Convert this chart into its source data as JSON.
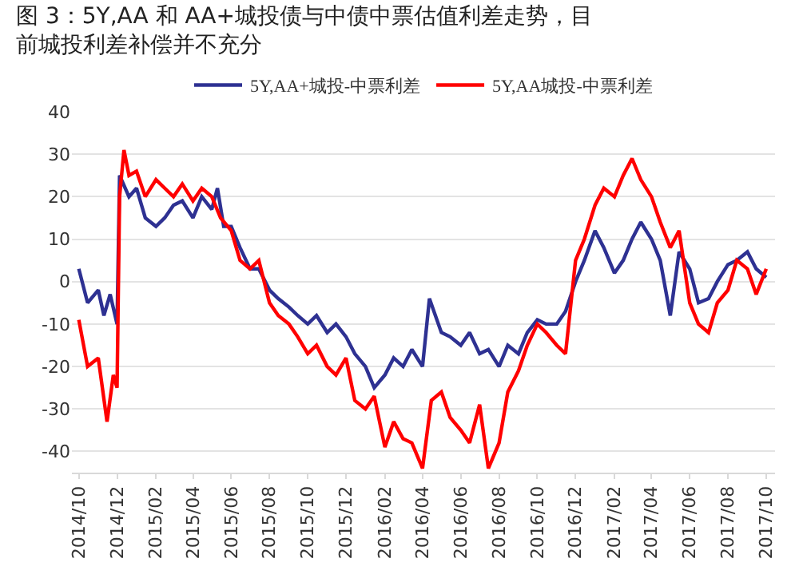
{
  "chart_data": {
    "type": "line",
    "title": "图 3：5Y,AA 和 AA+城投债与中债中票估值利差走势，目前城投利差补偿并不充分",
    "series": [
      {
        "name": "5Y,AA+城投-中票利差",
        "color": "#2e3192",
        "x": [
          "2014-10-01",
          "2014-10-15",
          "2014-11-01",
          "2014-11-10",
          "2014-11-20",
          "2014-12-01",
          "2014-12-05",
          "2014-12-20",
          "2015-01-01",
          "2015-01-15",
          "2015-02-01",
          "2015-02-15",
          "2015-03-01",
          "2015-03-15",
          "2015-04-01",
          "2015-04-15",
          "2015-05-01",
          "2015-05-10",
          "2015-05-20",
          "2015-06-01",
          "2015-06-15",
          "2015-07-01",
          "2015-07-15",
          "2015-08-01",
          "2015-08-15",
          "2015-09-01",
          "2015-09-15",
          "2015-10-01",
          "2015-10-15",
          "2015-11-01",
          "2015-11-15",
          "2015-12-01",
          "2015-12-15",
          "2016-01-01",
          "2016-01-15",
          "2016-02-01",
          "2016-02-15",
          "2016-03-01",
          "2016-03-15",
          "2016-04-01",
          "2016-04-12",
          "2016-05-01",
          "2016-05-15",
          "2016-06-01",
          "2016-06-15",
          "2016-07-01",
          "2016-07-15",
          "2016-08-01",
          "2016-08-15",
          "2016-09-01",
          "2016-09-15",
          "2016-10-01",
          "2016-10-15",
          "2016-11-01",
          "2016-11-15",
          "2016-12-01",
          "2016-12-15",
          "2017-01-01",
          "2017-01-15",
          "2017-02-01",
          "2017-02-15",
          "2017-03-01",
          "2017-03-15",
          "2017-04-01",
          "2017-04-15",
          "2017-05-01",
          "2017-05-15",
          "2017-06-01",
          "2017-06-15",
          "2017-07-01",
          "2017-07-15",
          "2017-08-01",
          "2017-08-15",
          "2017-09-01",
          "2017-09-15",
          "2017-10-01"
        ],
        "values": [
          3,
          -5,
          -2,
          -8,
          -3,
          -10,
          25,
          20,
          22,
          15,
          13,
          15,
          18,
          19,
          15,
          20,
          17,
          22,
          13,
          13,
          8,
          3,
          3,
          -2,
          -4,
          -6,
          -8,
          -10,
          -8,
          -12,
          -10,
          -13,
          -17,
          -20,
          -25,
          -22,
          -18,
          -20,
          -16,
          -20,
          -4,
          -12,
          -13,
          -15,
          -12,
          -17,
          -16,
          -20,
          -15,
          -17,
          -12,
          -9,
          -10,
          -10,
          -7,
          0,
          5,
          12,
          8,
          2,
          5,
          10,
          14,
          10,
          5,
          -8,
          7,
          3,
          -5,
          -4,
          0,
          4,
          5,
          7,
          3,
          1
        ]
      },
      {
        "name": "5Y,AA城投-中票利差",
        "color": "#ff0000",
        "x": [
          "2014-10-01",
          "2014-10-15",
          "2014-11-01",
          "2014-11-15",
          "2014-11-25",
          "2014-12-01",
          "2014-12-05",
          "2014-12-12",
          "2014-12-20",
          "2015-01-01",
          "2015-01-15",
          "2015-02-01",
          "2015-02-15",
          "2015-03-01",
          "2015-03-15",
          "2015-04-01",
          "2015-04-15",
          "2015-05-01",
          "2015-05-15",
          "2015-06-01",
          "2015-06-15",
          "2015-07-01",
          "2015-07-15",
          "2015-08-01",
          "2015-08-15",
          "2015-09-01",
          "2015-09-15",
          "2015-10-01",
          "2015-10-15",
          "2015-11-01",
          "2015-11-15",
          "2015-12-01",
          "2015-12-15",
          "2016-01-01",
          "2016-01-15",
          "2016-02-01",
          "2016-02-15",
          "2016-03-01",
          "2016-03-15",
          "2016-04-01",
          "2016-04-15",
          "2016-05-01",
          "2016-05-15",
          "2016-06-01",
          "2016-06-15",
          "2016-07-01",
          "2016-07-15",
          "2016-08-01",
          "2016-08-15",
          "2016-09-01",
          "2016-09-15",
          "2016-10-01",
          "2016-10-15",
          "2016-11-01",
          "2016-11-15",
          "2016-12-01",
          "2016-12-15",
          "2017-01-01",
          "2017-01-15",
          "2017-02-01",
          "2017-02-15",
          "2017-03-01",
          "2017-03-15",
          "2017-04-01",
          "2017-04-15",
          "2017-05-01",
          "2017-05-15",
          "2017-06-01",
          "2017-06-15",
          "2017-07-01",
          "2017-07-15",
          "2017-08-01",
          "2017-08-15",
          "2017-09-01",
          "2017-09-15",
          "2017-10-01"
        ],
        "values": [
          -9,
          -20,
          -18,
          -33,
          -22,
          -25,
          20,
          31,
          25,
          26,
          20,
          24,
          22,
          20,
          23,
          19,
          22,
          20,
          15,
          12,
          5,
          3,
          5,
          -5,
          -8,
          -10,
          -13,
          -17,
          -15,
          -20,
          -22,
          -18,
          -28,
          -30,
          -27,
          -39,
          -33,
          -37,
          -38,
          -44,
          -28,
          -26,
          -32,
          -35,
          -38,
          -29,
          -44,
          -38,
          -26,
          -21,
          -15,
          -10,
          -12,
          -15,
          -17,
          5,
          10,
          18,
          22,
          20,
          25,
          29,
          24,
          20,
          14,
          8,
          12,
          -5,
          -10,
          -12,
          -5,
          -2,
          5,
          3,
          -3,
          3
        ]
      }
    ],
    "xlim": [
      "2014-09-20",
      "2017-10-15"
    ],
    "xticks": [
      {
        "value": "2014-10-01",
        "label": "2014/10"
      },
      {
        "value": "2014-12-01",
        "label": "2014/12"
      },
      {
        "value": "2015-02-01",
        "label": "2015/02"
      },
      {
        "value": "2015-04-01",
        "label": "2015/04"
      },
      {
        "value": "2015-06-01",
        "label": "2015/06"
      },
      {
        "value": "2015-08-01",
        "label": "2015/08"
      },
      {
        "value": "2015-10-01",
        "label": "2015/10"
      },
      {
        "value": "2015-12-01",
        "label": "2015/12"
      },
      {
        "value": "2016-02-01",
        "label": "2016/02"
      },
      {
        "value": "2016-04-01",
        "label": "2016/04"
      },
      {
        "value": "2016-06-01",
        "label": "2016/06"
      },
      {
        "value": "2016-08-01",
        "label": "2016/08"
      },
      {
        "value": "2016-10-01",
        "label": "2016/10"
      },
      {
        "value": "2016-12-01",
        "label": "2016/12"
      },
      {
        "value": "2017-02-01",
        "label": "2017/02"
      },
      {
        "value": "2017-04-01",
        "label": "2017/04"
      },
      {
        "value": "2017-06-01",
        "label": "2017/06"
      },
      {
        "value": "2017-08-01",
        "label": "2017/08"
      },
      {
        "value": "2017-10-01",
        "label": "2017/10"
      }
    ],
    "ylim": [
      -45,
      40
    ],
    "yticks": [
      -40,
      -30,
      -20,
      -10,
      0,
      10,
      20,
      30,
      40
    ],
    "grid": "y",
    "legend": "top",
    "marker": "none",
    "line_style": "solid"
  }
}
